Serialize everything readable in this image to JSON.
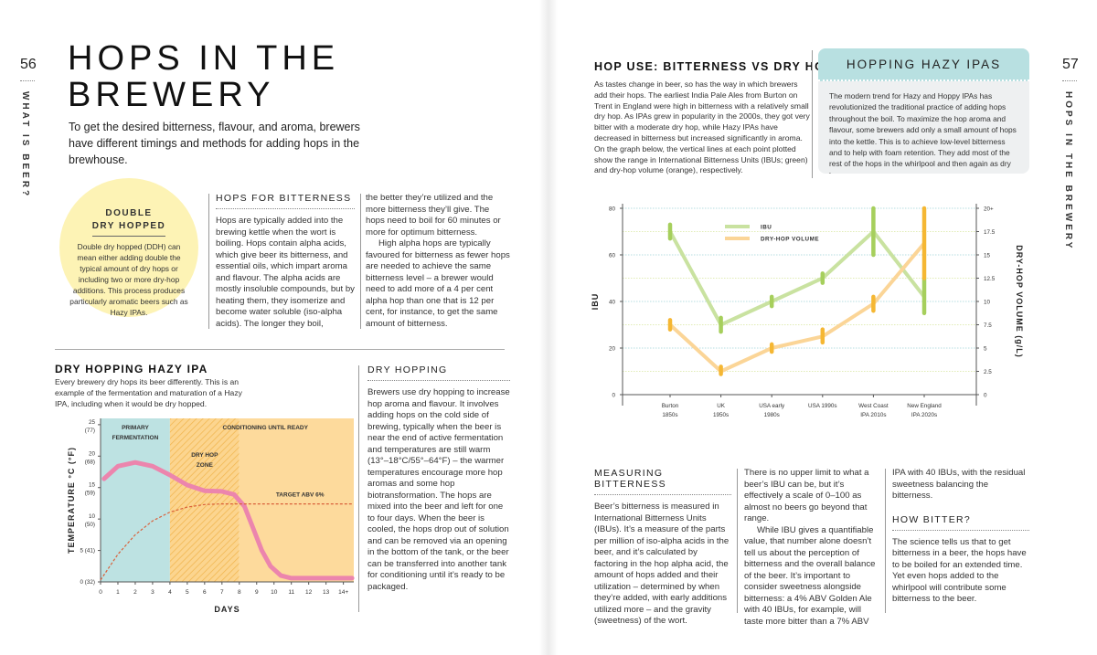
{
  "left_page": {
    "page_number": "56",
    "section_tab": "WHAT IS BEER?",
    "title_line1": "HOPS IN THE",
    "title_line2": "BREWERY",
    "intro": "To get the desired bitterness, flavour, and aroma, brewers have different timings and methods for adding hops in the brewhouse.",
    "callout": {
      "title_line1": "DOUBLE",
      "title_line2": "DRY HOPPED",
      "text": "Double dry hopped (DDH) can mean either adding double the typical amount of dry hops or including two or more dry-hop additions. This process produces particularly aromatic beers such as Hazy IPAs."
    },
    "hops_for_bitterness": {
      "heading": "HOPS FOR BITTERNESS",
      "col1": "Hops are typically added into the brewing kettle when the wort is boiling. Hops contain alpha acids, which give beer its bitterness, and essential oils, which impart aroma and flavour. The alpha acids are mostly insoluble compounds, but by heating them, they isomerize and become water soluble (iso-alpha acids). The longer they boil,",
      "col2_p1": "the better they’re utilized and the more bitterness they’ll give. The hops need to boil for 60 minutes or more for optimum bitterness.",
      "col2_p2": "High alpha hops are typically favoured for bitterness as fewer hops are needed to achieve the same bitterness level – a brewer would need to add more of a 4 per cent alpha hop than one that is 12 per cent, for instance, to get the same amount of bitterness."
    },
    "dry_hopping_hazy": {
      "heading": "DRY HOPPING HAZY IPA",
      "text": "Every brewery dry hops its beer differently. This is an example of the fermentation and maturation of a Hazy IPA, including when it would be dry hopped."
    },
    "dry_hopping": {
      "heading": "DRY HOPPING",
      "text": "Brewers use dry hopping to increase hop aroma and flavour. It involves adding hops on the cold side of brewing, typically when the beer is near the end of active fermentation and temperatures are still warm (13°–18°C/55°–64°F) – the warmer temperatures encourage more hop aromas and some hop biotransformation. The hops are mixed into the beer and left for one to four days. When the beer is cooled, the hops drop out of solution and can be removed via an opening in the bottom of the tank, or the beer can be transferred into another tank for conditioning until it’s ready to be packaged."
    }
  },
  "right_page": {
    "page_number": "57",
    "section_tab": "HOPS IN THE BREWERY",
    "hop_use": {
      "heading": "HOP USE: BITTERNESS VS DRY HOP",
      "text": "As tastes change in beer, so has the way in which brewers add their hops. The earliest India Pale Ales from Burton on Trent in England were high in bitterness with a relatively small dry hop. As IPAs grew in popularity in the 2000s, they got very bitter with a moderate dry hop, while Hazy IPAs have decreased in bitterness but increased significantly in aroma. On the graph below, the vertical lines at each point plotted show the range in International Bitterness Units (IBUs; green) and dry-hop volume (orange), respectively."
    },
    "hazy_box": {
      "heading": "HOPPING HAZY IPAS",
      "text": "The modern trend for Hazy and Hoppy IPAs has revolutionized the traditional practice of adding hops throughout the boil. To maximize the hop aroma and flavour, some brewers add only a small amount of hops into the kettle. This is to achieve low-level bitterness and to help with foam retention. They add most of the rest of the hops in the whirlpool and then again as dry hops."
    },
    "measuring": {
      "heading": "MEASURING BITTERNESS",
      "col1": "Beer’s bitterness is measured in International Bitterness Units (IBUs). It’s a measure of the parts per million of iso-alpha acids in the beer, and it’s calculated by factoring in the hop alpha acid, the amount of hops added and their utilization – determined by when they’re added, with early additions utilized more – and the gravity (sweetness) of the wort.",
      "col2_p1": "There is no upper limit to what a beer’s IBU can be, but it’s effectively a scale of 0–100 as almost no beers go beyond that range.",
      "col2_p2": "While IBU gives a quantifiable value, that number alone doesn’t tell us about the perception of bitterness and the overall balance of the beer. It’s important to consider sweetness alongside bitterness: a 4% ABV Golden Ale with 40 IBUs, for example, will taste more bitter than a 7% ABV",
      "col3": "IPA with 40 IBUs, with the residual sweetness balancing the bitterness."
    },
    "how_bitter": {
      "heading": "HOW BITTER?",
      "text": "The science tells us that to get bitterness in a beer, the hops have to be boiled for an extended time. Yet even hops added to the whirlpool will contribute some bitterness to the beer."
    }
  },
  "chart_data": [
    {
      "type": "line",
      "xlabel": "DAYS",
      "ylabel": "TEMPERATURE °C (°F)",
      "x_ticks": [
        "0",
        "1",
        "2",
        "3",
        "4",
        "5",
        "6",
        "7",
        "8",
        "9",
        "10",
        "11",
        "12",
        "13",
        "14+"
      ],
      "y_ticks": [
        {
          "v": 0,
          "label": "0 (32)"
        },
        {
          "v": 5,
          "label": "5 (41)"
        },
        {
          "v": 10,
          "label": "10",
          "sub": "(50)"
        },
        {
          "v": 15,
          "label": "15",
          "sub": "(59)"
        },
        {
          "v": 20,
          "label": "20",
          "sub": "(68)"
        },
        {
          "v": 25,
          "label": "25",
          "sub": "(77)"
        }
      ],
      "xlim": [
        0,
        14.6
      ],
      "ylim": [
        0,
        26
      ],
      "zones": [
        {
          "label1": "PRIMARY",
          "label2": "FERMENTATION",
          "from": 0,
          "to": 4,
          "color": "#bde2e2"
        },
        {
          "label1": "DRY HOP",
          "label2": "ZONE",
          "from": 4,
          "to": 8,
          "color": "#fcd58f",
          "hatched": true
        },
        {
          "label1": "",
          "label2": "",
          "from": 8,
          "to": 14.6,
          "color": "#fdda9c"
        }
      ],
      "zone_header": "CONDITIONING UNTIL READY",
      "series": [
        {
          "name": "temperature",
          "color": "#ec85ad",
          "points": [
            [
              0.2,
              16.4
            ],
            [
              1,
              18.4
            ],
            [
              2,
              19
            ],
            [
              3,
              18.4
            ],
            [
              4,
              17
            ],
            [
              5,
              15.4
            ],
            [
              6,
              14.5
            ],
            [
              7,
              14.4
            ],
            [
              7.7,
              13.9
            ],
            [
              8.3,
              12
            ],
            [
              8.8,
              8.5
            ],
            [
              9.3,
              5
            ],
            [
              9.8,
              2.5
            ],
            [
              10.4,
              1
            ],
            [
              11,
              0.6
            ],
            [
              14.5,
              0.6
            ]
          ]
        },
        {
          "name": "abv",
          "color": "#d9603a",
          "dashed": true,
          "label": "TARGET ABV 6%",
          "points": [
            [
              0,
              0.3
            ],
            [
              1,
              4.4
            ],
            [
              2,
              7.5
            ],
            [
              3,
              9.7
            ],
            [
              4,
              11.1
            ],
            [
              5,
              11.9
            ],
            [
              6,
              12.3
            ],
            [
              7,
              12.4
            ],
            [
              14.5,
              12.4
            ]
          ]
        }
      ]
    },
    {
      "type": "line",
      "ylabel": "IBU",
      "y2label": "DRY-HOP VOLUME (g/L)",
      "categories": [
        "Burton|1850s",
        "UK|1950s",
        "USA early|1980s",
        "USA 1990s",
        "West Coast|IPA 2010s",
        "New England|IPA 2020s"
      ],
      "ylim": [
        0,
        80
      ],
      "y_ticks": [
        0,
        20,
        40,
        60,
        80
      ],
      "y2lim": [
        0,
        20
      ],
      "y2_ticks": [
        "0",
        "2.5",
        "5",
        "7.5",
        "10",
        "12.5",
        "15",
        "17.5",
        "20+"
      ],
      "grid": true,
      "legend": "top-left",
      "series": [
        {
          "name": "IBU",
          "axis": "left",
          "color": "#c9e2a0",
          "range_color": "#a6cf5c",
          "values": [
            70,
            30,
            40,
            50,
            70,
            42
          ],
          "ranges": [
            [
              67,
              73
            ],
            [
              27,
              33
            ],
            [
              38,
              42
            ],
            [
              48,
              52
            ],
            [
              60,
              80
            ],
            [
              35,
              50
            ]
          ]
        },
        {
          "name": "DRY-HOP VOLUME",
          "axis": "right",
          "color": "#fbd597",
          "range_color": "#f5b733",
          "values": [
            7.5,
            2.5,
            5,
            6.25,
            9.75,
            16.25
          ],
          "ranges": [
            [
              7,
              8
            ],
            [
              2.2,
              3
            ],
            [
              4.6,
              5.4
            ],
            [
              5.6,
              7
            ],
            [
              9,
              10.5
            ],
            [
              12.5,
              20
            ]
          ]
        }
      ]
    }
  ]
}
